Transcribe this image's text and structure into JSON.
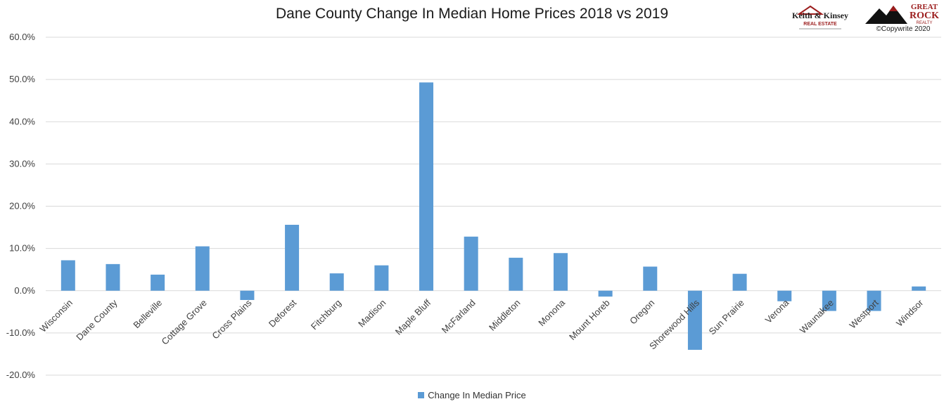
{
  "chart_data": {
    "type": "bar",
    "title": "Dane County Change In Median Home Prices 2018 vs 2019",
    "xlabel": "",
    "ylabel": "",
    "ylim": [
      -20,
      60
    ],
    "y_ticks": [
      60,
      50,
      40,
      30,
      20,
      10,
      0,
      -10,
      -20
    ],
    "y_tick_labels": [
      "60.0%",
      "50.0%",
      "40.0%",
      "30.0%",
      "20.0%",
      "10.0%",
      "0.0%",
      "-10.0%",
      "-20.0%"
    ],
    "grid": true,
    "legend_position": "bottom",
    "bar_color": "#5b9bd5",
    "categories": [
      "Wisconsin",
      "Dane County",
      "Belleville",
      "Cottage Grove",
      "Cross Plains",
      "Deforest",
      "Fitchburg",
      "Madison",
      "Maple Bluff",
      "McFarland",
      "Middleton",
      "Monona",
      "Mount Horeb",
      "Oregon",
      "Shorewood Hills",
      "Sun Prairie",
      "Verona",
      "Waunakee",
      "Westport",
      "Windsor"
    ],
    "series": [
      {
        "name": "Change In Median Price",
        "values": [
          7.2,
          6.3,
          3.8,
          10.5,
          -2.2,
          15.6,
          4.1,
          6.0,
          49.3,
          12.8,
          7.8,
          8.9,
          -1.4,
          5.7,
          -14.0,
          4.0,
          -2.5,
          -4.8,
          -4.8,
          1.0
        ]
      }
    ]
  },
  "branding": {
    "logo_left_line1": "Keith & Kinsey",
    "logo_left_line2": "REAL ESTATE",
    "logo_right_line1": "GREAT",
    "logo_right_line2": "ROCK",
    "logo_right_line3": "REALTY",
    "copyright": "©Copywrite 2020"
  }
}
